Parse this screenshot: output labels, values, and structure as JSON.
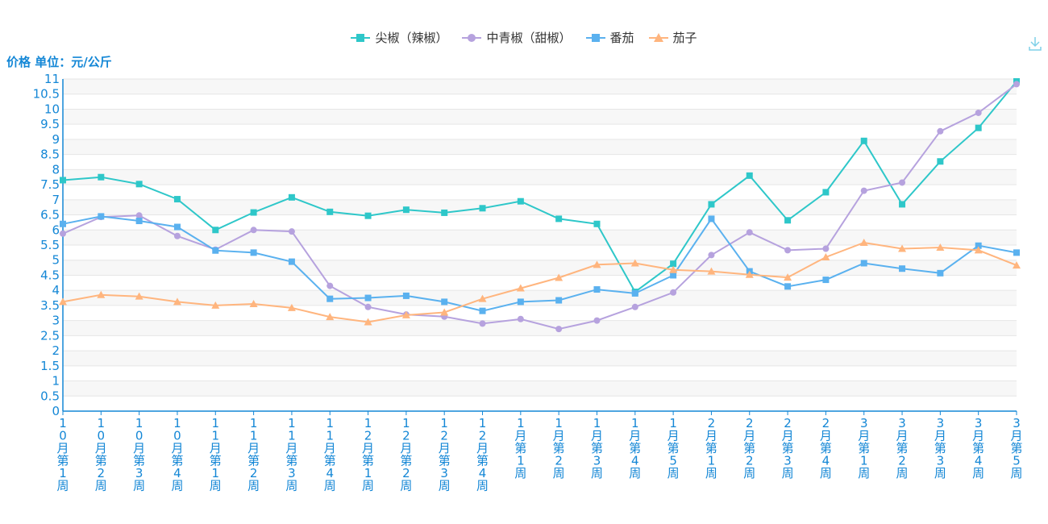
{
  "unit_label": "价格 单位：元/公斤",
  "toolbox": {
    "download_icon": "download-icon"
  },
  "colors": {
    "axis_text": "#1487d6",
    "grid": "#e6e6e6",
    "band": "#f7f7f7"
  },
  "chart_data": {
    "type": "line",
    "categories": [
      "10月第1周",
      "10月第2周",
      "10月第3周",
      "10月第4周",
      "11月第1周",
      "11月第2周",
      "11月第3周",
      "11月第4周",
      "12月第1周",
      "12月第2周",
      "12月第3周",
      "12月第4周",
      "1月第1周",
      "1月第2周",
      "1月第3周",
      "1月第4周",
      "1月第5周",
      "2月第1周",
      "2月第2周",
      "2月第3周",
      "2月第4周",
      "3月第1周",
      "3月第2周",
      "3月第3周",
      "3月第4周",
      "3月第5周"
    ],
    "ylim": [
      0,
      11
    ],
    "ytick_step": 0.5,
    "grid": true,
    "legend_position": "top-center",
    "series": [
      {
        "name": "尖椒（辣椒）",
        "color": "#2ec7c9",
        "marker": "square",
        "values": [
          7.65,
          7.75,
          7.52,
          7.02,
          6.0,
          6.58,
          7.08,
          6.6,
          6.47,
          6.67,
          6.57,
          6.72,
          6.95,
          6.37,
          6.2,
          3.95,
          4.88,
          6.85,
          7.8,
          6.32,
          7.25,
          8.95,
          6.85,
          8.27,
          9.38,
          10.92
        ]
      },
      {
        "name": "中青椒（甜椒）",
        "color": "#b6a2de",
        "marker": "circle",
        "values": [
          5.88,
          6.43,
          6.48,
          5.8,
          5.35,
          6.0,
          5.95,
          4.15,
          3.45,
          3.2,
          3.13,
          2.9,
          3.05,
          2.72,
          3.0,
          3.45,
          3.93,
          5.17,
          5.92,
          5.33,
          5.38,
          7.3,
          7.57,
          9.27,
          9.88,
          10.83
        ]
      },
      {
        "name": "番茄",
        "color": "#5ab1ef",
        "marker": "square",
        "values": [
          6.2,
          6.45,
          6.3,
          6.1,
          5.32,
          5.25,
          4.95,
          3.72,
          3.75,
          3.82,
          3.62,
          3.32,
          3.62,
          3.67,
          4.03,
          3.9,
          4.5,
          6.37,
          4.63,
          4.13,
          4.35,
          4.9,
          4.72,
          4.57,
          5.48,
          5.25
        ]
      },
      {
        "name": "茄子",
        "color": "#ffb57e",
        "marker": "triangle",
        "values": [
          3.62,
          3.85,
          3.8,
          3.62,
          3.5,
          3.55,
          3.42,
          3.12,
          2.95,
          3.18,
          3.27,
          3.72,
          4.07,
          4.42,
          4.85,
          4.9,
          4.68,
          4.63,
          4.52,
          4.43,
          5.1,
          5.58,
          5.38,
          5.42,
          5.33,
          4.83
        ]
      }
    ]
  }
}
